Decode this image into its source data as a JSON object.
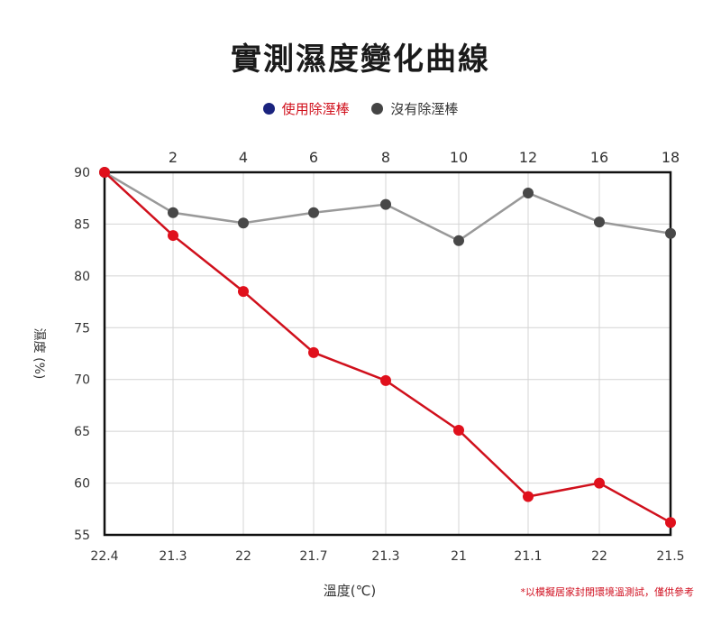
{
  "chart_data": {
    "type": "line",
    "title": "實測濕度變化曲線",
    "ylabel": "濕度 (%)",
    "xlabel": "溫度(℃)",
    "ylim": [
      55,
      90
    ],
    "yticks": [
      90,
      85,
      80,
      75,
      70,
      65,
      60,
      55
    ],
    "top_axis_labels": [
      "",
      "2",
      "4",
      "6",
      "8",
      "10",
      "12",
      "16",
      "18"
    ],
    "bottom_axis_labels": [
      "22.4",
      "21.3",
      "22",
      "21.7",
      "21.3",
      "21",
      "21.1",
      "22",
      "21.5"
    ],
    "grid": true,
    "legend_position": "top-center",
    "series": [
      {
        "name": "使用除溼棒",
        "legend_color": "#1a237e",
        "color": "#d0101c",
        "values": [
          90,
          83.9,
          78.5,
          72.6,
          69.9,
          65.1,
          58.7,
          60.0,
          56.2
        ]
      },
      {
        "name": "沒有除溼棒",
        "legend_color": "#444444",
        "color": "#999999",
        "values": [
          90,
          86.1,
          85.1,
          86.1,
          86.9,
          83.4,
          88.0,
          85.2,
          84.1
        ]
      }
    ],
    "footnote": "*以模擬居家封閉環境溫測試，僅供參考"
  }
}
